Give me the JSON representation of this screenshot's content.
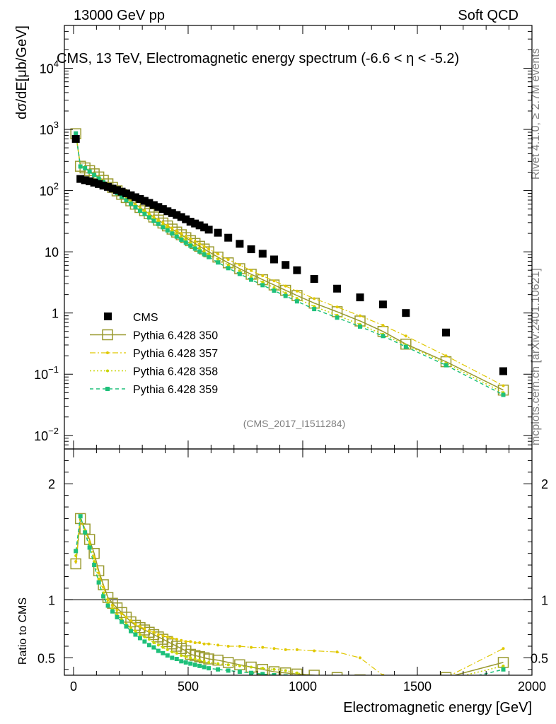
{
  "header": {
    "left": "13000 GeV pp",
    "right": "Soft QCD"
  },
  "side": {
    "rivet": "Rivet 4.1.0, ≥ 2.7M events",
    "mcplots": "mcplots.cern.ch [arXiv:2401.10621]"
  },
  "chart_data": {
    "type": "scatter",
    "title": "CMS, 13 TeV, Electromagnetic energy spectrum (-6.6 < η < -5.2)",
    "analysis_tag": "(CMS_2017_I1511284)",
    "xlabel": "Electromagnetic energy [GeV]",
    "ylabel_main": "dσ/dE[μb/GeV]",
    "ylabel_ratio": "Ratio to CMS",
    "xlim": [
      -40,
      2000
    ],
    "ylim_main": [
      0.006,
      50000
    ],
    "yscale_main": "log",
    "ylim_ratio": [
      0.35,
      2.3
    ],
    "x_ticks": [
      0,
      500,
      1000,
      1500,
      2000
    ],
    "main_ytick_labels": [
      {
        "v": 0.01,
        "base": "10",
        "exp": "−2"
      },
      {
        "v": 0.1,
        "base": "10",
        "exp": "−1"
      },
      {
        "v": 1,
        "base": "1",
        "exp": ""
      },
      {
        "v": 10,
        "base": "10",
        "exp": ""
      },
      {
        "v": 100,
        "base": "10",
        "exp": "2"
      },
      {
        "v": 1000,
        "base": "10",
        "exp": "3"
      },
      {
        "v": 10000,
        "base": "10",
        "exp": "4"
      }
    ],
    "ratio_ytick_labels": [
      {
        "v": 0.5,
        "label": "0.5"
      },
      {
        "v": 1,
        "label": "1"
      },
      {
        "v": 2,
        "label": "2"
      }
    ],
    "legend": {
      "placement": "lower-left",
      "entries": [
        "CMS",
        "Pythia 6.428 350",
        "Pythia 6.428 357",
        "Pythia 6.428 358",
        "Pythia 6.428 359"
      ]
    },
    "cms": {
      "name": "CMS",
      "color": "#000000",
      "x": [
        10,
        30,
        50,
        70,
        90,
        110,
        130,
        150,
        170,
        190,
        210,
        230,
        250,
        270,
        290,
        310,
        330,
        350,
        370,
        390,
        410,
        430,
        450,
        470,
        490,
        510,
        530,
        550,
        570,
        590,
        630,
        675,
        725,
        775,
        825,
        875,
        925,
        975,
        1050,
        1150,
        1250,
        1350,
        1450,
        1625,
        1875
      ],
      "y": [
        700,
        155,
        148,
        142,
        135,
        128,
        121,
        115,
        108,
        102,
        96,
        90,
        84,
        78,
        73,
        68,
        63,
        58,
        54,
        50,
        46,
        43,
        40,
        37,
        34,
        31,
        29,
        27,
        25,
        23,
        20.5,
        17,
        13.5,
        11,
        9.3,
        7.5,
        6.1,
        5.0,
        3.6,
        2.5,
        1.8,
        1.38,
        1.0,
        0.48,
        0.112
      ]
    },
    "series": [
      {
        "name": "Pythia 6.428 350",
        "color": "#9a9a2f",
        "x": [
          10,
          30,
          50,
          70,
          90,
          110,
          130,
          150,
          170,
          190,
          210,
          230,
          250,
          270,
          290,
          310,
          330,
          350,
          370,
          390,
          410,
          430,
          450,
          470,
          490,
          510,
          530,
          550,
          570,
          590,
          630,
          675,
          725,
          775,
          825,
          875,
          925,
          975,
          1050,
          1150,
          1250,
          1350,
          1450,
          1625,
          1875
        ],
        "y": [
          850,
          250,
          235,
          212,
          188,
          167,
          147,
          129,
          113,
          99,
          87,
          77,
          68,
          60,
          53,
          47,
          42,
          37,
          33,
          29.5,
          26.5,
          23.5,
          21,
          19,
          17,
          15.2,
          13.7,
          12.3,
          11.1,
          10.0,
          8.2,
          6.6,
          5.3,
          4.3,
          3.5,
          2.87,
          2.35,
          1.93,
          1.45,
          1.05,
          0.74,
          0.5,
          0.31,
          0.16,
          0.055
        ],
        "ratio": [
          1.31,
          1.7,
          1.61,
          1.52,
          1.4,
          1.25,
          1.13,
          1.02,
          0.97,
          0.93,
          0.89,
          0.85,
          0.81,
          0.78,
          0.76,
          0.74,
          0.72,
          0.7,
          0.68,
          0.66,
          0.64,
          0.62,
          0.6,
          0.58,
          0.56,
          0.53,
          0.52,
          0.51,
          0.5,
          0.49,
          0.48,
          0.46,
          0.44,
          0.42,
          0.4,
          0.38,
          0.37,
          0.36,
          0.35,
          0.33,
          0.31,
          0.29,
          0.27,
          0.33,
          0.46
        ]
      },
      {
        "name": "Pythia 6.428 357",
        "color": "#e0c800",
        "x": [
          10,
          30,
          50,
          70,
          90,
          110,
          130,
          150,
          170,
          190,
          210,
          230,
          250,
          270,
          290,
          310,
          330,
          350,
          370,
          390,
          410,
          430,
          450,
          470,
          490,
          510,
          530,
          550,
          570,
          590,
          630,
          675,
          725,
          775,
          825,
          875,
          925,
          975,
          1050,
          1150,
          1250,
          1350,
          1450,
          1625,
          1875
        ],
        "y": [
          840,
          245,
          230,
          208,
          185,
          164,
          145,
          127,
          111,
          98,
          86,
          76,
          67,
          59,
          52.5,
          47,
          42,
          37.5,
          33.5,
          30,
          27,
          24.5,
          22,
          20,
          18,
          16.3,
          14.8,
          13.4,
          12.2,
          11.1,
          9.2,
          7.5,
          6.1,
          4.95,
          4.05,
          3.35,
          2.75,
          2.28,
          1.72,
          1.25,
          0.9,
          0.63,
          0.42,
          0.2,
          0.065
        ],
        "ratio": [
          1.33,
          1.69,
          1.6,
          1.5,
          1.37,
          1.23,
          1.11,
          1.0,
          0.95,
          0.91,
          0.88,
          0.85,
          0.82,
          0.79,
          0.77,
          0.75,
          0.73,
          0.72,
          0.7,
          0.69,
          0.68,
          0.67,
          0.66,
          0.65,
          0.64,
          0.64,
          0.63,
          0.63,
          0.62,
          0.62,
          0.61,
          0.6,
          0.6,
          0.59,
          0.59,
          0.58,
          0.57,
          0.57,
          0.56,
          0.55,
          0.5,
          0.35,
          0.3,
          0.33,
          0.58
        ]
      },
      {
        "name": "Pythia 6.428 358",
        "color": "#c8d400",
        "x": [
          10,
          30,
          50,
          70,
          90,
          110,
          130,
          150,
          170,
          190,
          210,
          230,
          250,
          270,
          290,
          310,
          330,
          350,
          370,
          390,
          410,
          430,
          450,
          470,
          490,
          510,
          530,
          550,
          570,
          590,
          630,
          675,
          725,
          775,
          825,
          875,
          925,
          975,
          1050,
          1150,
          1250,
          1350,
          1450,
          1625,
          1875
        ],
        "y": [
          880,
          252,
          236,
          210,
          185,
          163,
          143,
          125,
          109,
          95.5,
          83.5,
          73.5,
          65,
          57,
          50.5,
          44.5,
          39.5,
          35,
          31,
          27.5,
          24.5,
          22,
          19.5,
          17.5,
          15.6,
          14.0,
          12.6,
          11.3,
          10.2,
          9.2,
          7.6,
          6.1,
          4.9,
          3.95,
          3.2,
          2.6,
          2.12,
          1.73,
          1.28,
          0.92,
          0.65,
          0.45,
          0.3,
          0.15,
          0.05
        ],
        "ratio": [
          1.38,
          1.71,
          1.6,
          1.48,
          1.33,
          1.18,
          1.06,
          0.97,
          0.92,
          0.87,
          0.83,
          0.79,
          0.76,
          0.73,
          0.7,
          0.68,
          0.66,
          0.63,
          0.61,
          0.59,
          0.57,
          0.55,
          0.54,
          0.52,
          0.51,
          0.5,
          0.49,
          0.48,
          0.47,
          0.46,
          0.45,
          0.44,
          0.43,
          0.42,
          0.41,
          0.4,
          0.39,
          0.37,
          0.34,
          0.32,
          0.3,
          0.29,
          0.28,
          0.31,
          0.43
        ]
      },
      {
        "name": "Pythia 6.428 359",
        "color": "#1ec07a",
        "x": [
          10,
          30,
          50,
          70,
          90,
          110,
          130,
          150,
          170,
          190,
          210,
          230,
          250,
          270,
          290,
          310,
          330,
          350,
          370,
          390,
          410,
          430,
          450,
          470,
          490,
          510,
          530,
          550,
          570,
          590,
          630,
          675,
          725,
          775,
          825,
          875,
          925,
          975,
          1050,
          1150,
          1250,
          1350,
          1450,
          1625,
          1875
        ],
        "y": [
          860,
          248,
          232,
          205,
          180,
          158,
          138,
          120,
          104,
          91,
          79.5,
          69.5,
          61,
          53.5,
          47,
          41.5,
          36.5,
          32,
          28.5,
          25.2,
          22.4,
          19.9,
          17.7,
          15.8,
          14.1,
          12.6,
          11.3,
          10.1,
          9.1,
          8.2,
          6.7,
          5.4,
          4.35,
          3.5,
          2.85,
          2.32,
          1.9,
          1.55,
          1.16,
          0.84,
          0.6,
          0.42,
          0.28,
          0.14,
          0.046
        ],
        "ratio": [
          1.42,
          1.72,
          1.58,
          1.45,
          1.3,
          1.15,
          1.03,
          0.95,
          0.9,
          0.85,
          0.81,
          0.77,
          0.73,
          0.7,
          0.67,
          0.64,
          0.61,
          0.59,
          0.56,
          0.54,
          0.52,
          0.5,
          0.49,
          0.47,
          0.46,
          0.45,
          0.44,
          0.43,
          0.42,
          0.41,
          0.4,
          0.39,
          0.38,
          0.37,
          0.36,
          0.35,
          0.34,
          0.33,
          0.31,
          0.29,
          0.27,
          0.26,
          0.25,
          0.28,
          0.4
        ]
      }
    ]
  }
}
